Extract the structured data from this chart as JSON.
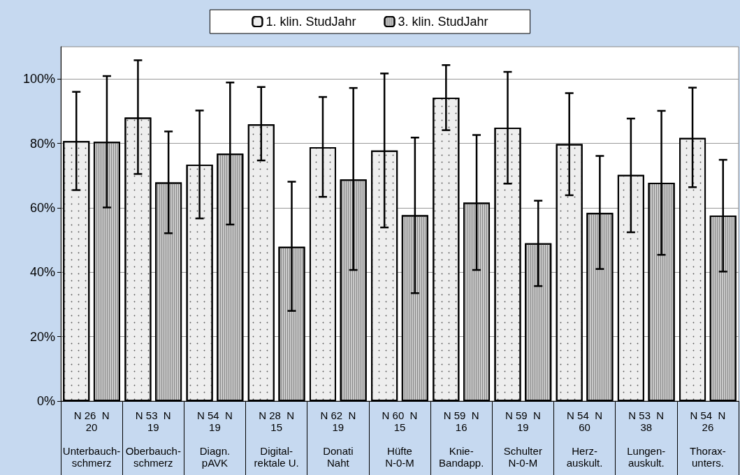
{
  "chart_data": {
    "type": "bar",
    "categories": [
      "N 26  N\n20\n\nUnterbauch-\nschmerz",
      "N 53  N\n19\n\nOberbauch-\nschmerz",
      "N 54  N\n19\n\nDiagn.\npAVK",
      "N 28  N\n15\n\nDigital-\nrektale U.",
      "N 62  N\n19\n\nDonati\nNaht",
      "N 60  N\n15\n\nHüfte\nN-0-M",
      "N 59  N\n16\n\nKnie-\nBandapp.",
      "N 59  N\n19\n\nSchulter\nN-0-M",
      "N 54  N\n60\n\nHerz-\nauskult.",
      "N 53  N\n38\n\nLungen-\nauskult.",
      "N 54  N\n26\n\nThorax-\nunters."
    ],
    "series": [
      {
        "name": "1. klin. StudJahr",
        "color": "#eeeeee",
        "values": [
          80.7,
          88.0,
          73.4,
          85.9,
          78.8,
          77.8,
          94.2,
          84.9,
          79.8,
          70.2,
          81.7
        ],
        "errors": [
          [
            65.5,
            96.0
          ],
          [
            70.5,
            105.8
          ],
          [
            56.7,
            90.2
          ],
          [
            74.7,
            97.5
          ],
          [
            63.4,
            94.4
          ],
          [
            53.9,
            101.7
          ],
          [
            84.1,
            104.3
          ],
          [
            67.5,
            102.2
          ],
          [
            63.9,
            95.6
          ],
          [
            52.4,
            87.7
          ],
          [
            66.4,
            97.3
          ]
        ]
      },
      {
        "name": "3. klin. StudJahr",
        "color": "#c8c8c8",
        "values": [
          80.5,
          67.9,
          76.8,
          47.9,
          68.8,
          57.7,
          61.6,
          49.0,
          58.4,
          67.8,
          57.6
        ],
        "errors": [
          [
            60.1,
            100.9
          ],
          [
            52.1,
            83.7
          ],
          [
            54.8,
            98.9
          ],
          [
            28.0,
            68.1
          ],
          [
            40.7,
            97.2
          ],
          [
            33.5,
            81.8
          ],
          [
            40.7,
            82.6
          ],
          [
            35.7,
            62.2
          ],
          [
            41.0,
            76.1
          ],
          [
            45.4,
            90.1
          ],
          [
            40.2,
            74.9
          ]
        ]
      }
    ],
    "ylim": [
      0,
      110
    ],
    "yticks": [
      {
        "value": 0,
        "label": "0%"
      },
      {
        "value": 20,
        "label": "20%"
      },
      {
        "value": 40,
        "label": "40%"
      },
      {
        "value": 60,
        "label": "60%"
      },
      {
        "value": 80,
        "label": "80%"
      },
      {
        "value": 100,
        "label": "100%"
      }
    ],
    "grid": "y",
    "legend": "top"
  }
}
